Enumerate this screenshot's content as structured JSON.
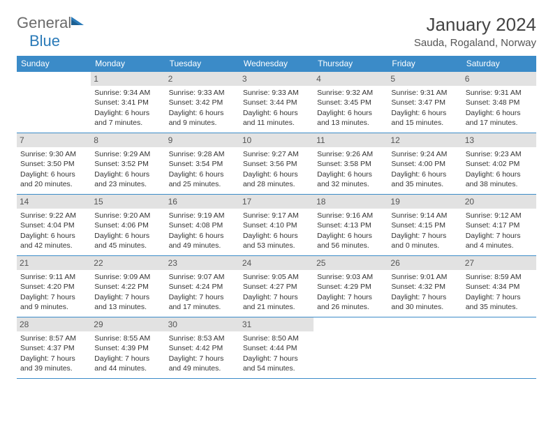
{
  "brand": {
    "part1": "General",
    "part2": "Blue"
  },
  "title": "January 2024",
  "location": "Sauda, Rogaland, Norway",
  "colors": {
    "header_bg": "#3b8bc8",
    "header_fg": "#ffffff",
    "daynum_bg": "#e2e2e2",
    "border": "#3b8bc8",
    "logo_gray": "#6b6b6b",
    "logo_blue": "#2a7ab8"
  },
  "weekdays": [
    "Sunday",
    "Monday",
    "Tuesday",
    "Wednesday",
    "Thursday",
    "Friday",
    "Saturday"
  ],
  "weeks": [
    [
      null,
      {
        "n": "1",
        "sr": "9:34 AM",
        "ss": "3:41 PM",
        "dl": "6 hours and 7 minutes."
      },
      {
        "n": "2",
        "sr": "9:33 AM",
        "ss": "3:42 PM",
        "dl": "6 hours and 9 minutes."
      },
      {
        "n": "3",
        "sr": "9:33 AM",
        "ss": "3:44 PM",
        "dl": "6 hours and 11 minutes."
      },
      {
        "n": "4",
        "sr": "9:32 AM",
        "ss": "3:45 PM",
        "dl": "6 hours and 13 minutes."
      },
      {
        "n": "5",
        "sr": "9:31 AM",
        "ss": "3:47 PM",
        "dl": "6 hours and 15 minutes."
      },
      {
        "n": "6",
        "sr": "9:31 AM",
        "ss": "3:48 PM",
        "dl": "6 hours and 17 minutes."
      }
    ],
    [
      {
        "n": "7",
        "sr": "9:30 AM",
        "ss": "3:50 PM",
        "dl": "6 hours and 20 minutes."
      },
      {
        "n": "8",
        "sr": "9:29 AM",
        "ss": "3:52 PM",
        "dl": "6 hours and 23 minutes."
      },
      {
        "n": "9",
        "sr": "9:28 AM",
        "ss": "3:54 PM",
        "dl": "6 hours and 25 minutes."
      },
      {
        "n": "10",
        "sr": "9:27 AM",
        "ss": "3:56 PM",
        "dl": "6 hours and 28 minutes."
      },
      {
        "n": "11",
        "sr": "9:26 AM",
        "ss": "3:58 PM",
        "dl": "6 hours and 32 minutes."
      },
      {
        "n": "12",
        "sr": "9:24 AM",
        "ss": "4:00 PM",
        "dl": "6 hours and 35 minutes."
      },
      {
        "n": "13",
        "sr": "9:23 AM",
        "ss": "4:02 PM",
        "dl": "6 hours and 38 minutes."
      }
    ],
    [
      {
        "n": "14",
        "sr": "9:22 AM",
        "ss": "4:04 PM",
        "dl": "6 hours and 42 minutes."
      },
      {
        "n": "15",
        "sr": "9:20 AM",
        "ss": "4:06 PM",
        "dl": "6 hours and 45 minutes."
      },
      {
        "n": "16",
        "sr": "9:19 AM",
        "ss": "4:08 PM",
        "dl": "6 hours and 49 minutes."
      },
      {
        "n": "17",
        "sr": "9:17 AM",
        "ss": "4:10 PM",
        "dl": "6 hours and 53 minutes."
      },
      {
        "n": "18",
        "sr": "9:16 AM",
        "ss": "4:13 PM",
        "dl": "6 hours and 56 minutes."
      },
      {
        "n": "19",
        "sr": "9:14 AM",
        "ss": "4:15 PM",
        "dl": "7 hours and 0 minutes."
      },
      {
        "n": "20",
        "sr": "9:12 AM",
        "ss": "4:17 PM",
        "dl": "7 hours and 4 minutes."
      }
    ],
    [
      {
        "n": "21",
        "sr": "9:11 AM",
        "ss": "4:20 PM",
        "dl": "7 hours and 9 minutes."
      },
      {
        "n": "22",
        "sr": "9:09 AM",
        "ss": "4:22 PM",
        "dl": "7 hours and 13 minutes."
      },
      {
        "n": "23",
        "sr": "9:07 AM",
        "ss": "4:24 PM",
        "dl": "7 hours and 17 minutes."
      },
      {
        "n": "24",
        "sr": "9:05 AM",
        "ss": "4:27 PM",
        "dl": "7 hours and 21 minutes."
      },
      {
        "n": "25",
        "sr": "9:03 AM",
        "ss": "4:29 PM",
        "dl": "7 hours and 26 minutes."
      },
      {
        "n": "26",
        "sr": "9:01 AM",
        "ss": "4:32 PM",
        "dl": "7 hours and 30 minutes."
      },
      {
        "n": "27",
        "sr": "8:59 AM",
        "ss": "4:34 PM",
        "dl": "7 hours and 35 minutes."
      }
    ],
    [
      {
        "n": "28",
        "sr": "8:57 AM",
        "ss": "4:37 PM",
        "dl": "7 hours and 39 minutes."
      },
      {
        "n": "29",
        "sr": "8:55 AM",
        "ss": "4:39 PM",
        "dl": "7 hours and 44 minutes."
      },
      {
        "n": "30",
        "sr": "8:53 AM",
        "ss": "4:42 PM",
        "dl": "7 hours and 49 minutes."
      },
      {
        "n": "31",
        "sr": "8:50 AM",
        "ss": "4:44 PM",
        "dl": "7 hours and 54 minutes."
      },
      null,
      null,
      null
    ]
  ],
  "labels": {
    "sunrise": "Sunrise:",
    "sunset": "Sunset:",
    "daylight": "Daylight:"
  }
}
